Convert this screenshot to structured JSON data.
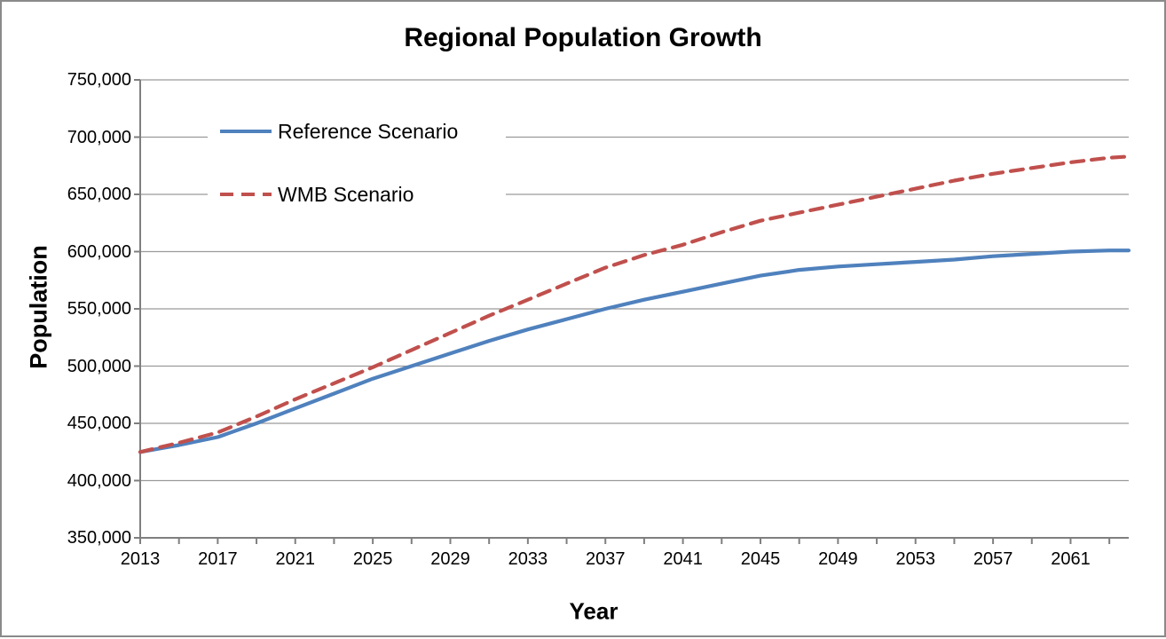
{
  "window": {
    "background": "#ffffff",
    "border_color": "#8a8a8a"
  },
  "chart_data": {
    "type": "line",
    "title": "Regional Population Growth",
    "xlabel": "Year",
    "ylabel": "Population",
    "x_range": [
      2013,
      2064
    ],
    "ylim": [
      350000,
      750000
    ],
    "y_tick_step": 50000,
    "grid": "horizontal",
    "gridline_color": "#9a9a9a",
    "axis_color": "#7f7f7f",
    "legend_position": "inside-top-left",
    "x_label_ticks": [
      2013,
      2017,
      2021,
      2025,
      2029,
      2033,
      2037,
      2041,
      2045,
      2049,
      2053,
      2057,
      2061
    ],
    "x_minor_tick_step": 2,
    "y_ticks": [
      {
        "value": 350000,
        "label": "350,000"
      },
      {
        "value": 400000,
        "label": "400,000"
      },
      {
        "value": 450000,
        "label": "450,000"
      },
      {
        "value": 500000,
        "label": "500,000"
      },
      {
        "value": 550000,
        "label": "550,000"
      },
      {
        "value": 600000,
        "label": "600,000"
      },
      {
        "value": 650000,
        "label": "650,000"
      },
      {
        "value": 700000,
        "label": "700,000"
      },
      {
        "value": 750000,
        "label": "750,000"
      }
    ],
    "x": [
      2013,
      2015,
      2017,
      2019,
      2021,
      2023,
      2025,
      2027,
      2029,
      2031,
      2033,
      2035,
      2037,
      2039,
      2041,
      2043,
      2045,
      2047,
      2049,
      2051,
      2053,
      2055,
      2057,
      2059,
      2061,
      2063,
      2064
    ],
    "series": [
      {
        "name": "Reference Scenario",
        "color": "#4F81BD",
        "dash": "solid",
        "values": [
          425000,
          431000,
          438000,
          450000,
          463000,
          476000,
          489000,
          500000,
          511000,
          522000,
          532000,
          541000,
          550000,
          558000,
          565000,
          572000,
          579000,
          584000,
          587000,
          589000,
          591000,
          593000,
          596000,
          598000,
          600000,
          601000,
          601000
        ]
      },
      {
        "name": "WMB Scenario",
        "color": "#C0504D",
        "dash": "dashed",
        "values": [
          425000,
          433000,
          442000,
          456000,
          471000,
          485000,
          499000,
          514000,
          529000,
          544000,
          558000,
          572000,
          586000,
          597000,
          606000,
          617000,
          627000,
          634000,
          641000,
          648000,
          655000,
          662000,
          668000,
          673000,
          678000,
          682000,
          683000
        ]
      }
    ]
  }
}
